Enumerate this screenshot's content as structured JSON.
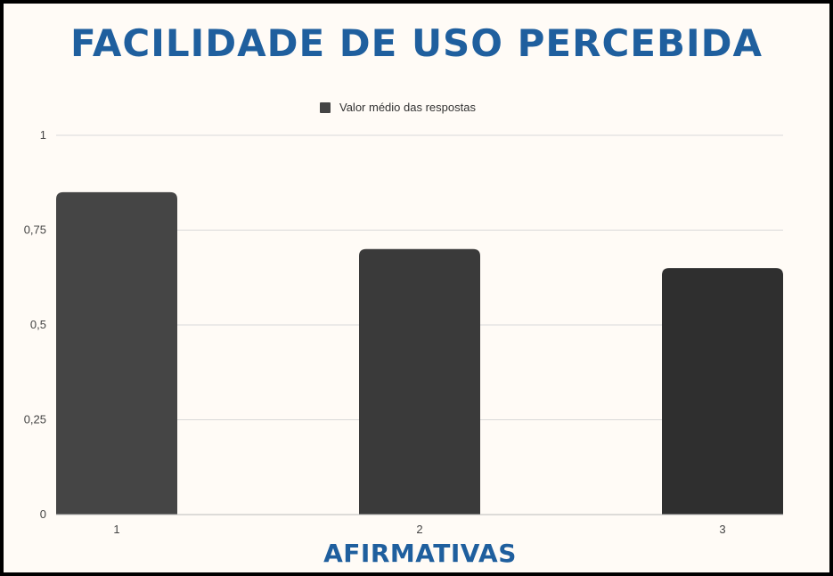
{
  "chart_data": {
    "type": "bar",
    "title": "FACILIDADE DE USO PERCEBIDA",
    "xlabel": "AFIRMATIVAS",
    "ylabel": "",
    "categories": [
      "1",
      "2",
      "3"
    ],
    "series": [
      {
        "name": "Valor médio das respostas",
        "values": [
          0.85,
          0.7,
          0.65
        ]
      }
    ],
    "ylim": [
      0,
      1
    ],
    "yticks": [
      "0",
      "0,25",
      "0,5",
      "0,75",
      "1"
    ],
    "ytick_values": [
      0,
      0.25,
      0.5,
      0.75,
      1
    ],
    "grid": true,
    "legend_position": "top-center",
    "colors": {
      "title": "#1f5f9e",
      "bars": [
        "#454545",
        "#3a3a3a",
        "#2f2f2f"
      ],
      "grid": "#d9d9d9"
    }
  }
}
